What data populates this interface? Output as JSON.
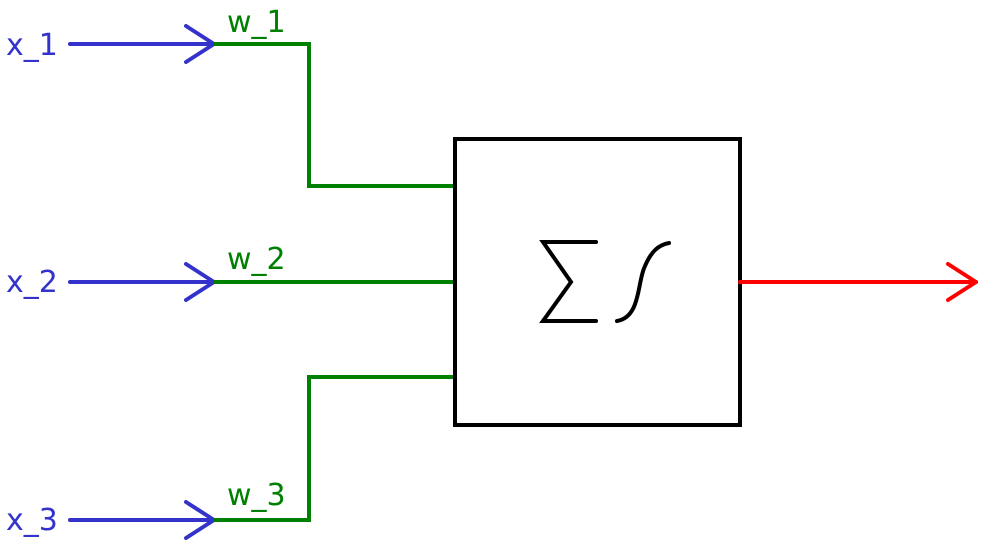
{
  "inputs": [
    {
      "label": "x_1",
      "weight": "w_1"
    },
    {
      "label": "x_2",
      "weight": "w_2"
    },
    {
      "label": "x_3",
      "weight": "w_3"
    }
  ],
  "colors": {
    "input": "#3333cc",
    "weight": "#008000",
    "output": "#ff0000",
    "box": "#000000"
  },
  "node": {
    "icons": [
      "summation-icon",
      "sigmoid-icon"
    ]
  }
}
